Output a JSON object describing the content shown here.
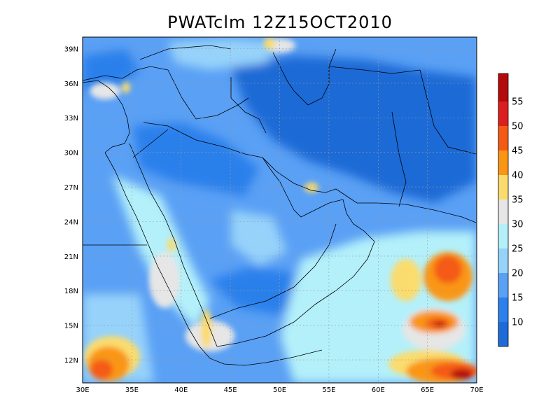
{
  "title": "PWATclm  12Z15OCT2010",
  "map": {
    "lon_range": [
      30,
      70
    ],
    "lat_range": [
      10,
      40
    ],
    "lon_ticks": [
      "30E",
      "35E",
      "40E",
      "45E",
      "50E",
      "55E",
      "60E",
      "65E",
      "70E"
    ],
    "lat_ticks": [
      "12N",
      "15N",
      "18N",
      "21N",
      "24N",
      "27N",
      "30N",
      "33N",
      "36N",
      "39N"
    ],
    "grid": true
  },
  "colorbar": {
    "labels": [
      "10",
      "15",
      "20",
      "25",
      "30",
      "35",
      "40",
      "45",
      "50",
      "55"
    ],
    "colors": [
      "#1e6ad6",
      "#2c80eb",
      "#5aa0f5",
      "#96d2fa",
      "#b4f0fa",
      "#e6e6e6",
      "#fadc6e",
      "#fa9614",
      "#f55a14",
      "#dc1e1e",
      "#b40a0a"
    ]
  }
}
